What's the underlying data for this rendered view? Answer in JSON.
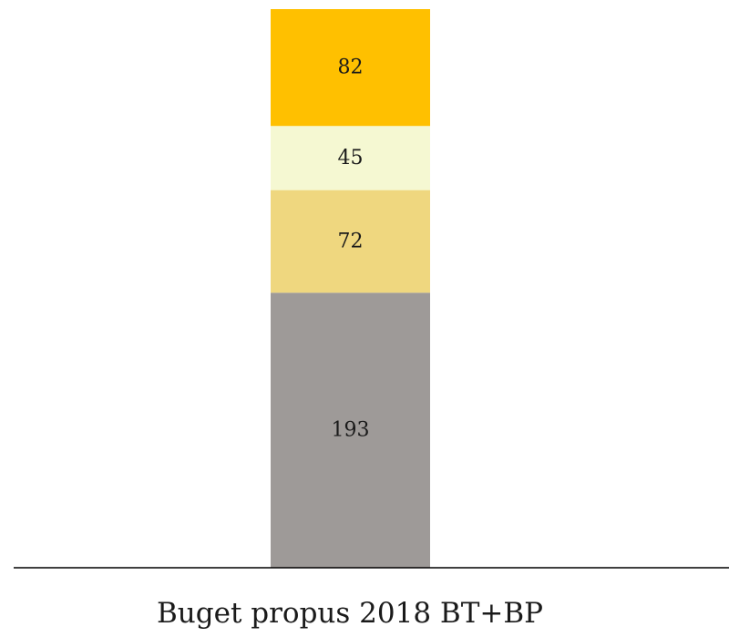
{
  "chart_data": {
    "type": "bar",
    "stacked": true,
    "categories": [
      "Buget propus 2018 BT+BP"
    ],
    "series": [
      {
        "values": [
          193
        ],
        "color": "#9e9a98"
      },
      {
        "values": [
          72
        ],
        "color": "#efd77f"
      },
      {
        "values": [
          45
        ],
        "color": "#f5f8d2"
      },
      {
        "values": [
          82
        ],
        "color": "#ffc000"
      }
    ],
    "data_labels": true,
    "legend": false,
    "grid": false,
    "ylim": [
      0,
      392
    ]
  }
}
